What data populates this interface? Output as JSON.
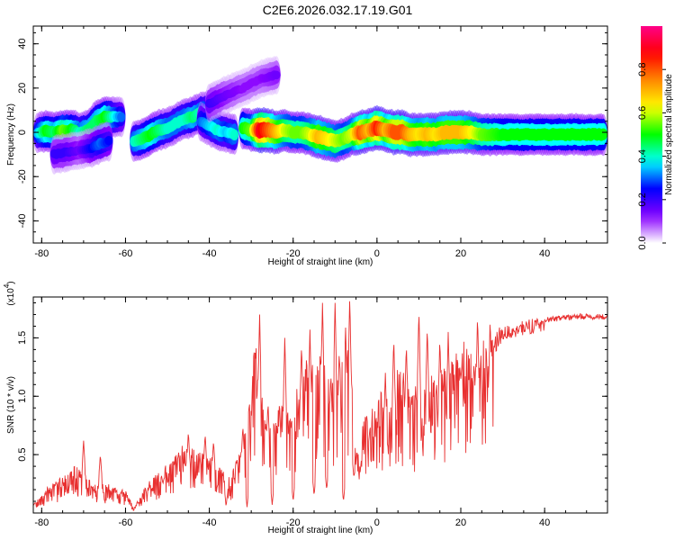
{
  "title": "C2E6.2026.032.17.19.G01",
  "chart_data": [
    {
      "type": "heatmap",
      "xlabel": "Height of straight line (km)",
      "ylabel": "Frequency (Hz)",
      "xlim": [
        -82,
        55
      ],
      "ylim": [
        -50,
        48
      ],
      "xticks": [
        -80,
        -60,
        -40,
        -20,
        0,
        20,
        40
      ],
      "yticks": [
        -40,
        -20,
        0,
        20,
        40
      ],
      "colorbar": {
        "label": "Normalized spectral amplitude",
        "range": [
          0,
          1
        ],
        "ticks": [
          0.0,
          0.2,
          0.4,
          0.6,
          0.8
        ],
        "tick_labels": [
          "0.0",
          "0.2",
          "0.4",
          "0.6",
          "0.8"
        ],
        "colormap": [
          "#ff0088",
          "#ff0000",
          "#ff8800",
          "#ffff00",
          "#00ff00",
          "#00ffff",
          "#0000ff",
          "#8800ff",
          "#ffffff"
        ]
      },
      "tracks": [
        {
          "points": [
            [
              -81,
              0,
              0.35
            ],
            [
              -79,
              0.5,
              0.5
            ],
            [
              -77,
              0,
              0.45
            ],
            [
              -75,
              0.5,
              0.55
            ],
            [
              -73,
              1,
              0.5
            ],
            [
              -71,
              0,
              0.4
            ],
            [
              -69,
              1,
              0.45
            ],
            [
              -67,
              5,
              0.45
            ],
            [
              -65,
              7,
              0.5
            ],
            [
              -63,
              7,
              0.4
            ],
            [
              -61,
              7,
              0.3
            ]
          ]
        },
        {
          "points": [
            [
              -77,
              -10,
              0.2
            ],
            [
              -74,
              -9,
              0.2
            ],
            [
              -71,
              -8,
              0.15
            ],
            [
              -68,
              -7,
              0.25
            ],
            [
              -66,
              -5,
              0.3
            ],
            [
              -64,
              -4,
              0.25
            ]
          ]
        },
        {
          "points": [
            [
              -58,
              -4,
              0.4
            ],
            [
              -56,
              -3,
              0.45
            ],
            [
              -54,
              -1,
              0.5
            ],
            [
              -52,
              1,
              0.45
            ],
            [
              -50,
              2,
              0.4
            ],
            [
              -48,
              4,
              0.4
            ],
            [
              -46,
              6,
              0.4
            ],
            [
              -44,
              7,
              0.45
            ],
            [
              -42,
              9,
              0.4
            ],
            [
              -40,
              10,
              0.35
            ],
            [
              -38,
              12,
              0.3
            ]
          ]
        },
        {
          "points": [
            [
              -42,
              5,
              0.3
            ],
            [
              -40,
              3,
              0.35
            ],
            [
              -38,
              1,
              0.4
            ],
            [
              -36,
              0,
              0.35
            ],
            [
              -34,
              -1,
              0.4
            ]
          ]
        },
        {
          "points": [
            [
              -32,
              2,
              0.5
            ],
            [
              -30,
              1,
              0.55
            ],
            [
              -28,
              1,
              0.9
            ],
            [
              -26,
              1,
              0.8
            ],
            [
              -24,
              0,
              0.7
            ],
            [
              -22,
              1,
              0.6
            ],
            [
              -20,
              0,
              0.55
            ],
            [
              -18,
              0,
              0.55
            ],
            [
              -16,
              -1,
              0.6
            ],
            [
              -14,
              -2,
              0.7
            ],
            [
              -12,
              -3,
              0.65
            ],
            [
              -10,
              -4,
              0.6
            ],
            [
              -8,
              -3,
              0.55
            ],
            [
              -6,
              -1,
              0.6
            ],
            [
              -4,
              0,
              0.8
            ],
            [
              -2,
              1,
              0.7
            ],
            [
              0,
              2,
              0.85
            ],
            [
              2,
              1,
              0.7
            ],
            [
              4,
              0,
              0.8
            ],
            [
              6,
              0,
              0.8
            ],
            [
              8,
              -1,
              0.7
            ],
            [
              10,
              -1,
              0.65
            ],
            [
              12,
              -1,
              0.7
            ],
            [
              14,
              -1,
              0.65
            ],
            [
              16,
              0,
              0.7
            ],
            [
              18,
              0,
              0.7
            ],
            [
              20,
              0,
              0.7
            ],
            [
              22,
              0,
              0.65
            ],
            [
              25,
              -1,
              0.55
            ],
            [
              30,
              -1,
              0.5
            ],
            [
              35,
              -1,
              0.5
            ],
            [
              40,
              -1,
              0.5
            ],
            [
              45,
              -1,
              0.5
            ],
            [
              50,
              -1,
              0.5
            ],
            [
              54,
              -1,
              0.5
            ]
          ]
        },
        {
          "points": [
            [
              -40,
              13,
              0.2
            ],
            [
              -36,
              17,
              0.15
            ],
            [
              -32,
              20,
              0.12
            ],
            [
              -28,
              24,
              0.12
            ],
            [
              -24,
              26,
              0.15
            ]
          ]
        }
      ]
    },
    {
      "type": "line",
      "xlabel": "Height of straight line (km)",
      "ylabel": "SNR (10 * v/v)",
      "multiplier": "(x10^4)",
      "xlim": [
        -82,
        55
      ],
      "ylim": [
        0,
        1.85
      ],
      "xticks": [
        -80,
        -60,
        -40,
        -20,
        0,
        20,
        40
      ],
      "yticks": [
        0.5,
        1.0,
        1.5
      ],
      "ytick_labels": [
        "0.5",
        "1.0",
        "1.5"
      ],
      "line_color": "#e83030",
      "envelope": [
        [
          -82,
          0.08
        ],
        [
          -78,
          0.25
        ],
        [
          -74,
          0.35
        ],
        [
          -71,
          0.45
        ],
        [
          -68,
          0.25
        ],
        [
          -64,
          0.25
        ],
        [
          -60,
          0.2
        ],
        [
          -58,
          0.05
        ],
        [
          -55,
          0.25
        ],
        [
          -50,
          0.45
        ],
        [
          -46,
          0.6
        ],
        [
          -42,
          0.55
        ],
        [
          -38,
          0.45
        ],
        [
          -35,
          0.3
        ],
        [
          -32,
          0.65
        ],
        [
          -30,
          1.1
        ],
        [
          -29,
          1.55
        ],
        [
          -27,
          0.9
        ],
        [
          -25,
          0.75
        ],
        [
          -23,
          1.05
        ],
        [
          -21,
          0.9
        ],
        [
          -19,
          1.1
        ],
        [
          -17,
          1.35
        ],
        [
          -15,
          1.3
        ],
        [
          -13,
          1.5
        ],
        [
          -11,
          1.2
        ],
        [
          -9,
          1.3
        ],
        [
          -7,
          1.55
        ],
        [
          -5,
          0.6
        ],
        [
          -3,
          0.85
        ],
        [
          -1,
          1.0
        ],
        [
          1,
          1.05
        ],
        [
          3,
          1.2
        ],
        [
          5,
          1.25
        ],
        [
          7,
          1.2
        ],
        [
          9,
          1.1
        ],
        [
          11,
          1.25
        ],
        [
          13,
          1.2
        ],
        [
          15,
          1.3
        ],
        [
          18,
          1.4
        ],
        [
          21,
          1.5
        ],
        [
          25,
          1.55
        ],
        [
          30,
          1.6
        ],
        [
          35,
          1.65
        ],
        [
          40,
          1.68
        ],
        [
          45,
          1.7
        ],
        [
          50,
          1.71
        ],
        [
          55,
          1.7
        ]
      ],
      "spikes": [
        [
          -70,
          0.62
        ],
        [
          -66,
          0.5
        ],
        [
          -45,
          0.7
        ],
        [
          -41,
          0.68
        ],
        [
          -39,
          0.62
        ],
        [
          -32,
          0.75
        ],
        [
          -28,
          1.7
        ],
        [
          -26,
          0.95
        ],
        [
          -22,
          1.5
        ],
        [
          -18,
          1.45
        ],
        [
          -16,
          1.57
        ],
        [
          -13,
          1.8
        ],
        [
          -11,
          1.2
        ],
        [
          -10,
          1.8
        ],
        [
          -9,
          1.4
        ],
        [
          -7.5,
          1.62
        ],
        [
          -6.5,
          1.85
        ],
        [
          -6,
          1.15
        ],
        [
          -5,
          0.45
        ],
        [
          2,
          1.2
        ],
        [
          4,
          1.5
        ],
        [
          7,
          1.45
        ],
        [
          10,
          1.75
        ],
        [
          12,
          1.6
        ],
        [
          15,
          1.5
        ],
        [
          17,
          1.55
        ],
        [
          20,
          1.68
        ],
        [
          24,
          1.7
        ],
        [
          27,
          1.68
        ]
      ],
      "dips": [
        [
          -58,
          0.03
        ],
        [
          -36,
          0.05
        ],
        [
          -31,
          0.05
        ],
        [
          -25,
          0.07
        ],
        [
          -20,
          0.1
        ],
        [
          -15,
          0.15
        ],
        [
          -12,
          0.2
        ],
        [
          -8,
          0.1
        ],
        [
          -5.5,
          0.3
        ],
        [
          -4,
          0.35
        ],
        [
          -2,
          0.6
        ],
        [
          0,
          0.75
        ],
        [
          3,
          0.85
        ],
        [
          8,
          0.9
        ],
        [
          14,
          1.0
        ],
        [
          20,
          1.15
        ],
        [
          28,
          1.4
        ]
      ]
    }
  ]
}
